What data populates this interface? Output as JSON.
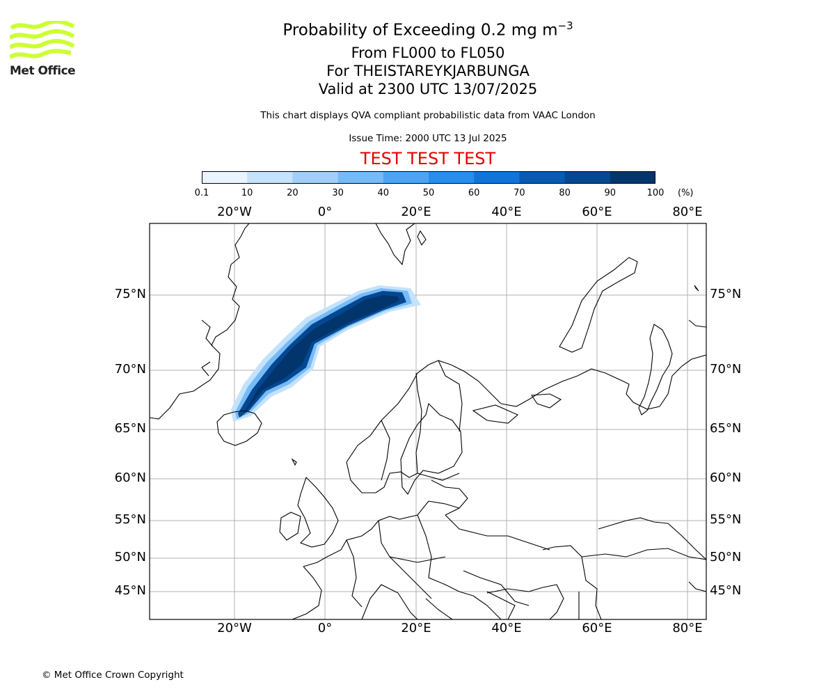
{
  "header": {
    "title_main": "Probability of Exceeding 0.2 mg m",
    "title_sup": "−3",
    "level_range": "From FL000 to FL050",
    "volcano": "For THEISTAREYKJARBUNGA",
    "valid_time": "Valid at 2300 UTC 13/07/2025",
    "description": "This chart displays QVA compliant probabilistic data from VAAC London",
    "issue_time": "Issue Time: 2000 UTC 13 Jul 2025",
    "test_banner": "TEST TEST TEST"
  },
  "logo": {
    "text": "Met Office",
    "color": "#ccff33"
  },
  "colorbar": {
    "ticks": [
      "0.1",
      "10",
      "20",
      "30",
      "40",
      "50",
      "60",
      "70",
      "80",
      "90",
      "100"
    ],
    "unit": "(%)",
    "colors": [
      "#eaf4ff",
      "#c4e2fc",
      "#a0d0fa",
      "#76bbf7",
      "#4ca5f4",
      "#258ff0",
      "#0f75db",
      "#075bb4",
      "#044891",
      "#02356c"
    ]
  },
  "map": {
    "lon_labels": [
      "20°W",
      "0°",
      "20°E",
      "40°E",
      "60°E",
      "80°E"
    ],
    "lat_labels": [
      "75°N",
      "70°N",
      "65°N",
      "60°N",
      "55°N",
      "50°N",
      "45°N"
    ]
  },
  "footer": {
    "copyright": "© Met Office Crown Copyright"
  }
}
